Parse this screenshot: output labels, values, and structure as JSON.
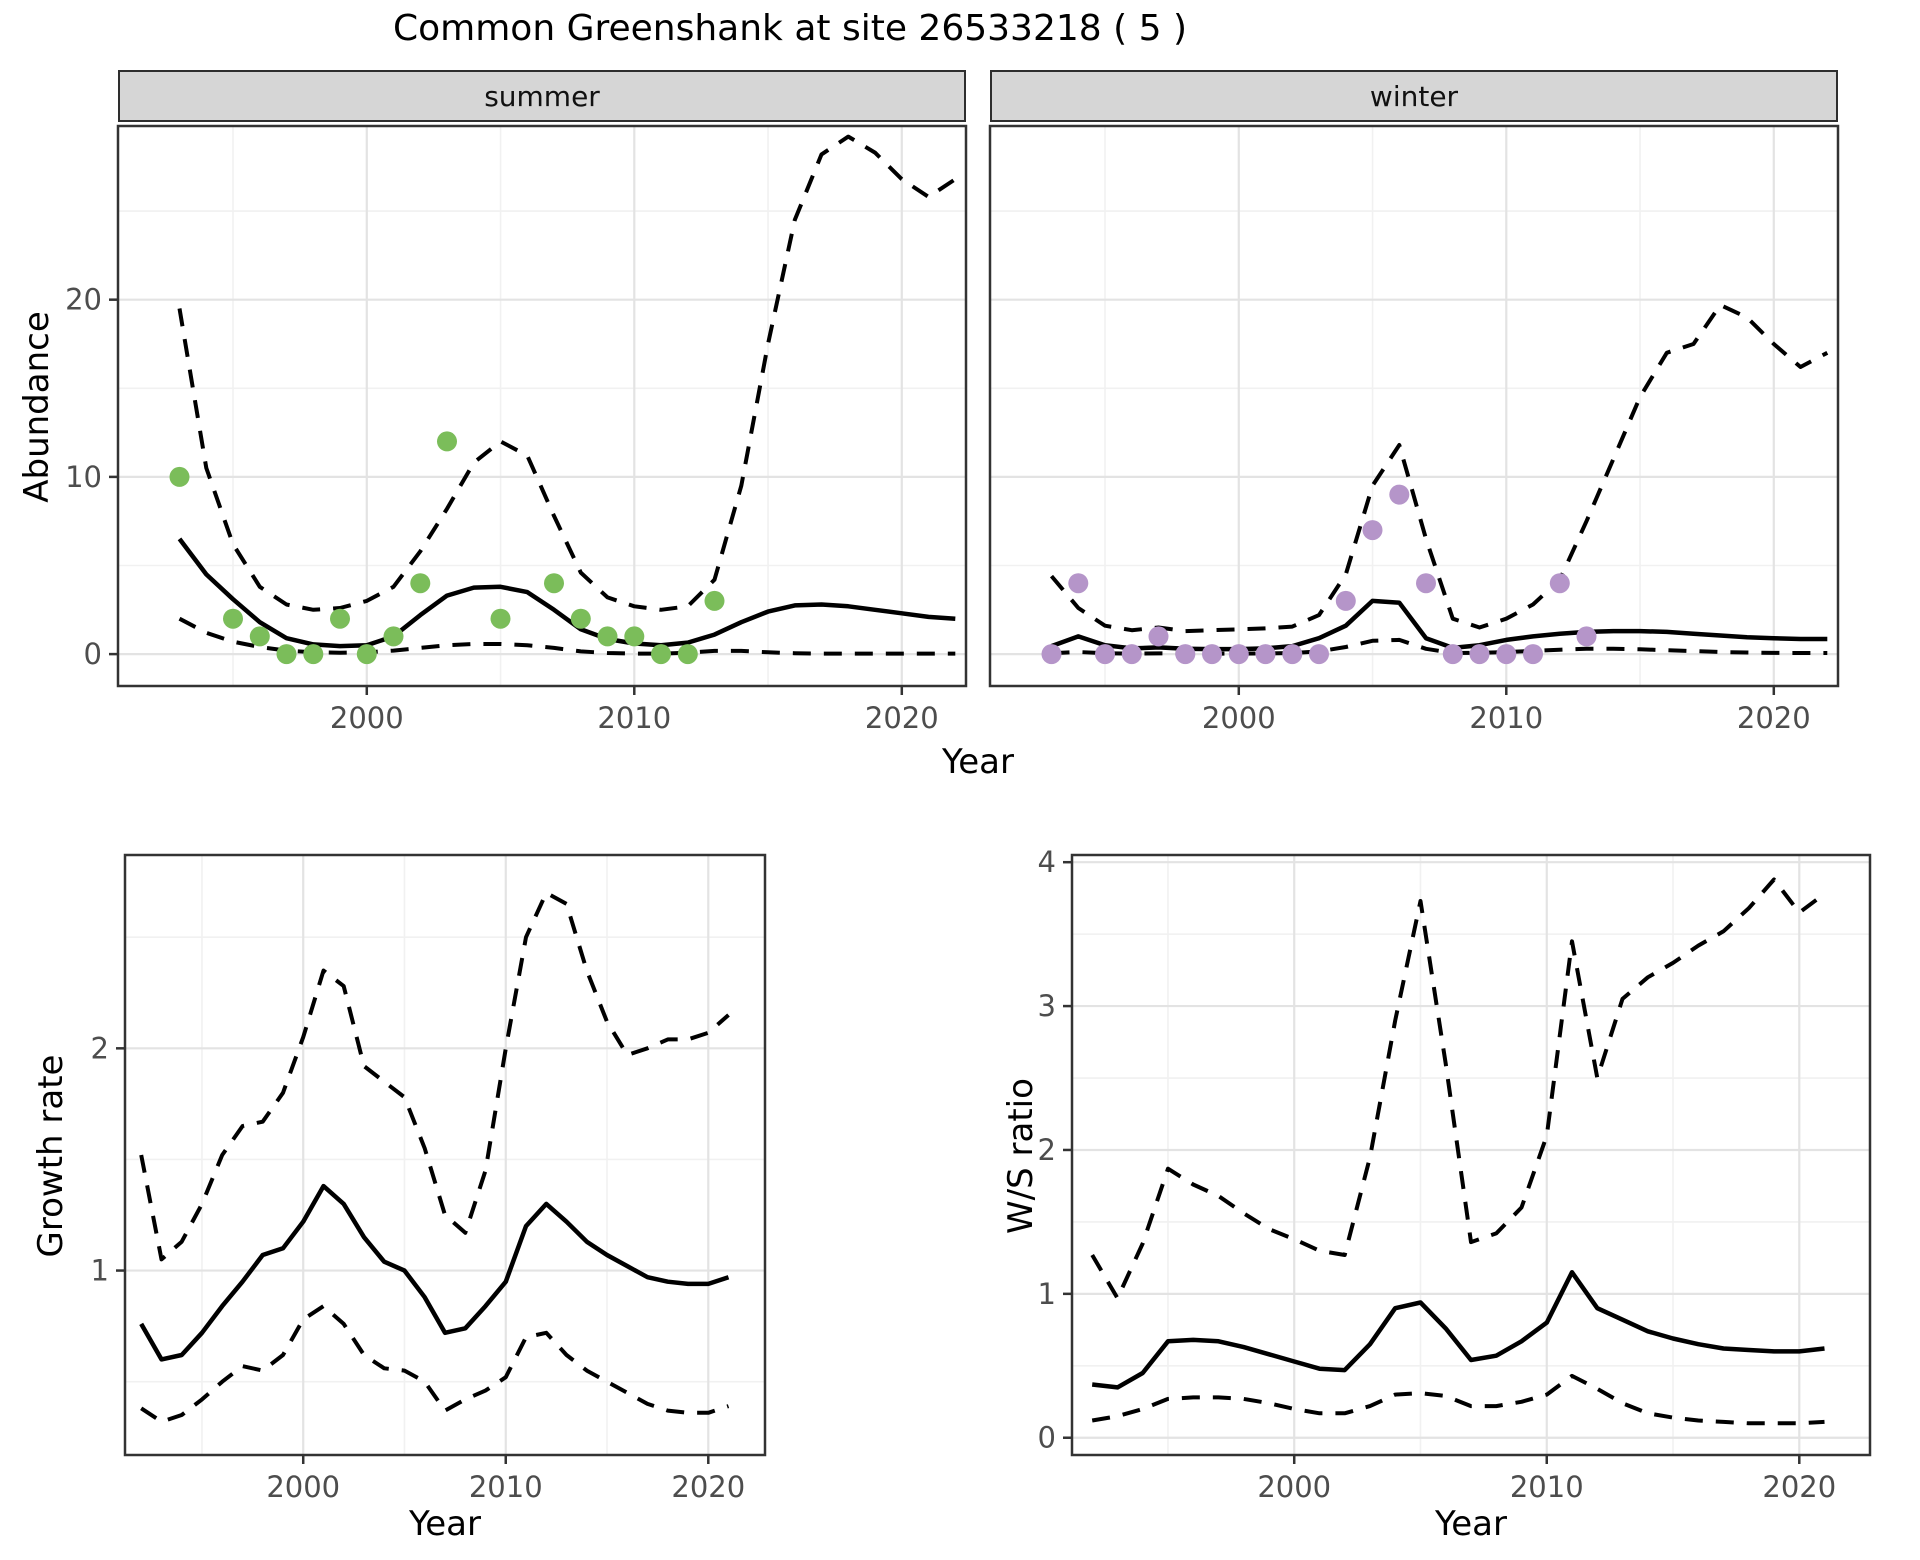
{
  "title": "Common Greenshank at site 26533218 ( 5 )",
  "facets": [
    "summer",
    "winter"
  ],
  "axis_labels": {
    "abundance": "Abundance",
    "year": "Year",
    "growth_rate": "Growth rate",
    "ws_ratio": "W/S ratio"
  },
  "colors": {
    "summer_point": "#7bbd5a",
    "winter_point": "#b595c9",
    "strip_bg": "#d6d6d6",
    "strip_border": "#2e2e2e",
    "panel_border": "#333333",
    "grid_major": "#e3e3e3",
    "grid_minor": "#f1f1f1",
    "line": "#000000",
    "tick_color": "#333333",
    "tick_text": "#4d4d4d"
  },
  "chart_data": [
    {
      "id": "summer",
      "type": "line",
      "facet_label": "summer",
      "xlabel": "Year",
      "ylabel": "Abundance",
      "xlim": [
        1990.7,
        2022.4
      ],
      "ylim": [
        -1.8,
        29.8
      ],
      "xticks": [
        2000,
        2010,
        2020
      ],
      "yticks": [
        0,
        10,
        20
      ],
      "xminor": [
        1995,
        2005,
        2015
      ],
      "yminor": [
        5,
        15,
        25
      ],
      "show_yticks": true,
      "grid": true,
      "points": {
        "color_ref": "summer_point",
        "years": [
          1993,
          1995,
          1996,
          1997,
          1998,
          1999,
          2000,
          2001,
          2002,
          2003,
          2005,
          2007,
          2008,
          2009,
          2010,
          2011,
          2012,
          2013
        ],
        "values": [
          10,
          2,
          1,
          0,
          0,
          2,
          0,
          1,
          4,
          12,
          2,
          4,
          2,
          1,
          1,
          0,
          0,
          3
        ]
      },
      "series": [
        {
          "name": "median",
          "style": "solid",
          "years": [
            1993,
            1994,
            1995,
            1996,
            1997,
            1998,
            1999,
            2000,
            2001,
            2002,
            2003,
            2004,
            2005,
            2006,
            2007,
            2008,
            2009,
            2010,
            2011,
            2012,
            2013,
            2014,
            2015,
            2016,
            2017,
            2018,
            2019,
            2020,
            2021,
            2022
          ],
          "values": [
            6.5,
            4.5,
            3.1,
            1.8,
            0.9,
            0.55,
            0.45,
            0.5,
            1.0,
            2.2,
            3.3,
            3.75,
            3.8,
            3.5,
            2.5,
            1.4,
            0.85,
            0.6,
            0.5,
            0.65,
            1.1,
            1.8,
            2.4,
            2.75,
            2.8,
            2.7,
            2.5,
            2.3,
            2.1,
            2.0
          ]
        },
        {
          "name": "upper_ci",
          "style": "dashed",
          "years": [
            1993,
            1994,
            1995,
            1996,
            1997,
            1998,
            1999,
            2000,
            2001,
            2002,
            2003,
            2004,
            2005,
            2006,
            2007,
            2008,
            2009,
            2010,
            2011,
            2012,
            2013,
            2014,
            2015,
            2016,
            2017,
            2018,
            2019,
            2020,
            2021,
            2022
          ],
          "values": [
            19.5,
            10.5,
            6.2,
            3.8,
            2.8,
            2.5,
            2.6,
            3.0,
            3.8,
            5.8,
            8.2,
            10.8,
            12.0,
            11.2,
            7.8,
            4.6,
            3.2,
            2.7,
            2.5,
            2.7,
            4.2,
            9.5,
            17.5,
            24.5,
            28.2,
            29.2,
            28.3,
            26.8,
            25.8,
            26.8
          ]
        },
        {
          "name": "lower_ci",
          "style": "dashed",
          "years": [
            1993,
            1994,
            1995,
            1996,
            1997,
            1998,
            1999,
            2000,
            2001,
            2002,
            2003,
            2004,
            2005,
            2006,
            2007,
            2008,
            2009,
            2010,
            2011,
            2012,
            2013,
            2014,
            2015,
            2016,
            2017,
            2018,
            2019,
            2020,
            2021,
            2022
          ],
          "values": [
            2.0,
            1.2,
            0.7,
            0.4,
            0.2,
            0.1,
            0.08,
            0.1,
            0.2,
            0.35,
            0.5,
            0.57,
            0.57,
            0.5,
            0.35,
            0.15,
            0.06,
            0.03,
            0.03,
            0.08,
            0.18,
            0.18,
            0.1,
            0.05,
            0.03,
            0.03,
            0.03,
            0.03,
            0.03,
            0.03
          ]
        }
      ]
    },
    {
      "id": "winter",
      "type": "line",
      "facet_label": "winter",
      "xlabel": "Year",
      "ylabel": "Abundance",
      "xlim": [
        1990.7,
        2022.4
      ],
      "ylim": [
        -1.8,
        29.8
      ],
      "xticks": [
        2000,
        2010,
        2020
      ],
      "yticks": [
        0,
        10,
        20
      ],
      "xminor": [
        1995,
        2005,
        2015
      ],
      "yminor": [
        5,
        15,
        25
      ],
      "show_yticks": false,
      "grid": true,
      "points": {
        "color_ref": "winter_point",
        "years": [
          1993,
          1994,
          1995,
          1996,
          1997,
          1998,
          1999,
          2000,
          2001,
          2002,
          2003,
          2004,
          2005,
          2006,
          2007,
          2008,
          2009,
          2010,
          2011,
          2012,
          2013
        ],
        "values": [
          0,
          4,
          0,
          0,
          1,
          0,
          0,
          0,
          0,
          0,
          0,
          3,
          7,
          9,
          4,
          0,
          0,
          0,
          0,
          4,
          1
        ]
      },
      "series": [
        {
          "name": "median",
          "style": "solid",
          "years": [
            1993,
            1994,
            1995,
            1996,
            1997,
            1998,
            1999,
            2000,
            2001,
            2002,
            2003,
            2004,
            2005,
            2006,
            2007,
            2008,
            2009,
            2010,
            2011,
            2012,
            2013,
            2014,
            2015,
            2016,
            2017,
            2018,
            2019,
            2020,
            2021,
            2022
          ],
          "values": [
            0.45,
            1.0,
            0.5,
            0.32,
            0.38,
            0.3,
            0.28,
            0.28,
            0.32,
            0.45,
            0.9,
            1.6,
            3.0,
            2.9,
            0.9,
            0.35,
            0.5,
            0.8,
            1.0,
            1.15,
            1.25,
            1.3,
            1.3,
            1.25,
            1.15,
            1.05,
            0.95,
            0.9,
            0.85,
            0.85
          ]
        },
        {
          "name": "upper_ci",
          "style": "dashed",
          "years": [
            1993,
            1994,
            1995,
            1996,
            1997,
            1998,
            1999,
            2000,
            2001,
            2002,
            2003,
            2004,
            2005,
            2006,
            2007,
            2008,
            2009,
            2010,
            2011,
            2012,
            2013,
            2014,
            2015,
            2016,
            2017,
            2018,
            2019,
            2020,
            2021,
            2022
          ],
          "values": [
            4.4,
            2.6,
            1.6,
            1.35,
            1.5,
            1.3,
            1.35,
            1.4,
            1.45,
            1.55,
            2.2,
            4.5,
            9.5,
            11.8,
            6.5,
            2.0,
            1.5,
            2.0,
            2.8,
            4.2,
            7.5,
            11.0,
            14.5,
            17.0,
            17.5,
            19.7,
            19.0,
            17.5,
            16.2,
            17.0
          ]
        },
        {
          "name": "lower_ci",
          "style": "dashed",
          "years": [
            1993,
            1994,
            1995,
            1996,
            1997,
            1998,
            1999,
            2000,
            2001,
            2002,
            2003,
            2004,
            2005,
            2006,
            2007,
            2008,
            2009,
            2010,
            2011,
            2012,
            2013,
            2014,
            2015,
            2016,
            2017,
            2018,
            2019,
            2020,
            2021,
            2022
          ],
          "values": [
            0.05,
            0.12,
            0.05,
            0.03,
            0.04,
            0.03,
            0.03,
            0.03,
            0.04,
            0.06,
            0.15,
            0.4,
            0.75,
            0.8,
            0.3,
            0.06,
            0.07,
            0.12,
            0.18,
            0.25,
            0.3,
            0.3,
            0.27,
            0.22,
            0.17,
            0.12,
            0.09,
            0.07,
            0.06,
            0.06
          ]
        }
      ]
    },
    {
      "id": "growth",
      "type": "line",
      "facet_label": "",
      "xlabel": "Year",
      "ylabel": "Growth rate",
      "xlim": [
        1991.2,
        2022.8
      ],
      "ylim": [
        0.17,
        2.87
      ],
      "xticks": [
        2000,
        2010,
        2020
      ],
      "yticks": [
        1,
        2
      ],
      "xminor": [
        1995,
        2005,
        2015
      ],
      "yminor": [
        0.5,
        1.5,
        2.5
      ],
      "show_yticks": true,
      "grid": true,
      "points": null,
      "series": [
        {
          "name": "median",
          "style": "solid",
          "years": [
            1992,
            1993,
            1994,
            1995,
            1996,
            1997,
            1998,
            1999,
            2000,
            2001,
            2002,
            2003,
            2004,
            2005,
            2006,
            2007,
            2008,
            2009,
            2010,
            2011,
            2012,
            2013,
            2014,
            2015,
            2016,
            2017,
            2018,
            2019,
            2020,
            2021
          ],
          "values": [
            0.76,
            0.6,
            0.62,
            0.72,
            0.84,
            0.95,
            1.07,
            1.1,
            1.22,
            1.38,
            1.3,
            1.15,
            1.04,
            1.0,
            0.88,
            0.72,
            0.74,
            0.84,
            0.95,
            1.2,
            1.3,
            1.22,
            1.13,
            1.07,
            1.02,
            0.97,
            0.95,
            0.94,
            0.94,
            0.97
          ]
        },
        {
          "name": "upper_ci",
          "style": "dashed",
          "years": [
            1992,
            1993,
            1994,
            1995,
            1996,
            1997,
            1998,
            1999,
            2000,
            2001,
            2002,
            2003,
            2004,
            2005,
            2006,
            2007,
            2008,
            2009,
            2010,
            2011,
            2012,
            2013,
            2014,
            2015,
            2016,
            2017,
            2018,
            2019,
            2020,
            2021
          ],
          "values": [
            1.52,
            1.05,
            1.13,
            1.3,
            1.52,
            1.65,
            1.67,
            1.8,
            2.05,
            2.35,
            2.28,
            1.92,
            1.85,
            1.78,
            1.55,
            1.25,
            1.17,
            1.45,
            2.0,
            2.5,
            2.7,
            2.65,
            2.35,
            2.12,
            1.97,
            2.0,
            2.04,
            2.04,
            2.07,
            2.15
          ]
        },
        {
          "name": "lower_ci",
          "style": "dashed",
          "years": [
            1992,
            1993,
            1994,
            1995,
            1996,
            1997,
            1998,
            1999,
            2000,
            2001,
            2002,
            2003,
            2004,
            2005,
            2006,
            2007,
            2008,
            2009,
            2010,
            2011,
            2012,
            2013,
            2014,
            2015,
            2016,
            2017,
            2018,
            2019,
            2020,
            2021
          ],
          "values": [
            0.38,
            0.32,
            0.35,
            0.42,
            0.5,
            0.57,
            0.55,
            0.62,
            0.78,
            0.84,
            0.76,
            0.62,
            0.56,
            0.55,
            0.5,
            0.37,
            0.42,
            0.46,
            0.52,
            0.7,
            0.72,
            0.62,
            0.55,
            0.5,
            0.45,
            0.4,
            0.37,
            0.36,
            0.36,
            0.39
          ]
        }
      ]
    },
    {
      "id": "ws",
      "type": "line",
      "facet_label": "",
      "xlabel": "Year",
      "ylabel": "W/S ratio",
      "xlim": [
        1991.2,
        2022.8
      ],
      "ylim": [
        -0.12,
        4.05
      ],
      "xticks": [
        2000,
        2010,
        2020
      ],
      "yticks": [
        0,
        1,
        2,
        3,
        4
      ],
      "xminor": [
        1995,
        2005,
        2015
      ],
      "yminor": [
        0.5,
        1.5,
        2.5,
        3.5
      ],
      "show_yticks": true,
      "grid": true,
      "points": null,
      "series": [
        {
          "name": "median",
          "style": "solid",
          "years": [
            1992,
            1993,
            1994,
            1995,
            1996,
            1997,
            1998,
            1999,
            2000,
            2001,
            2002,
            2003,
            2004,
            2005,
            2006,
            2007,
            2008,
            2009,
            2010,
            2011,
            2012,
            2013,
            2014,
            2015,
            2016,
            2017,
            2018,
            2019,
            2020,
            2021
          ],
          "values": [
            0.37,
            0.35,
            0.45,
            0.67,
            0.68,
            0.67,
            0.63,
            0.58,
            0.53,
            0.48,
            0.47,
            0.65,
            0.9,
            0.94,
            0.76,
            0.54,
            0.57,
            0.67,
            0.8,
            1.15,
            0.9,
            0.82,
            0.74,
            0.69,
            0.65,
            0.62,
            0.61,
            0.6,
            0.6,
            0.62
          ]
        },
        {
          "name": "upper_ci",
          "style": "dashed",
          "years": [
            1992,
            1993,
            1994,
            1995,
            1996,
            1997,
            1998,
            1999,
            2000,
            2001,
            2002,
            2003,
            2004,
            2005,
            2006,
            2007,
            2008,
            2009,
            2010,
            2011,
            2012,
            2013,
            2014,
            2015,
            2016,
            2017,
            2018,
            2019,
            2020,
            2021
          ],
          "values": [
            1.27,
            0.97,
            1.35,
            1.87,
            1.76,
            1.68,
            1.56,
            1.45,
            1.38,
            1.3,
            1.27,
            1.95,
            2.9,
            3.73,
            2.6,
            1.36,
            1.42,
            1.6,
            2.1,
            3.45,
            2.5,
            3.05,
            3.2,
            3.3,
            3.42,
            3.52,
            3.68,
            3.88,
            3.65,
            3.78
          ]
        },
        {
          "name": "lower_ci",
          "style": "dashed",
          "years": [
            1992,
            1993,
            1994,
            1995,
            1996,
            1997,
            1998,
            1999,
            2000,
            2001,
            2002,
            2003,
            2004,
            2005,
            2006,
            2007,
            2008,
            2009,
            2010,
            2011,
            2012,
            2013,
            2014,
            2015,
            2016,
            2017,
            2018,
            2019,
            2020,
            2021
          ],
          "values": [
            0.12,
            0.15,
            0.2,
            0.27,
            0.28,
            0.28,
            0.27,
            0.24,
            0.2,
            0.17,
            0.17,
            0.22,
            0.3,
            0.31,
            0.29,
            0.22,
            0.22,
            0.25,
            0.3,
            0.43,
            0.34,
            0.24,
            0.17,
            0.14,
            0.12,
            0.11,
            0.1,
            0.1,
            0.1,
            0.11
          ]
        }
      ]
    }
  ]
}
